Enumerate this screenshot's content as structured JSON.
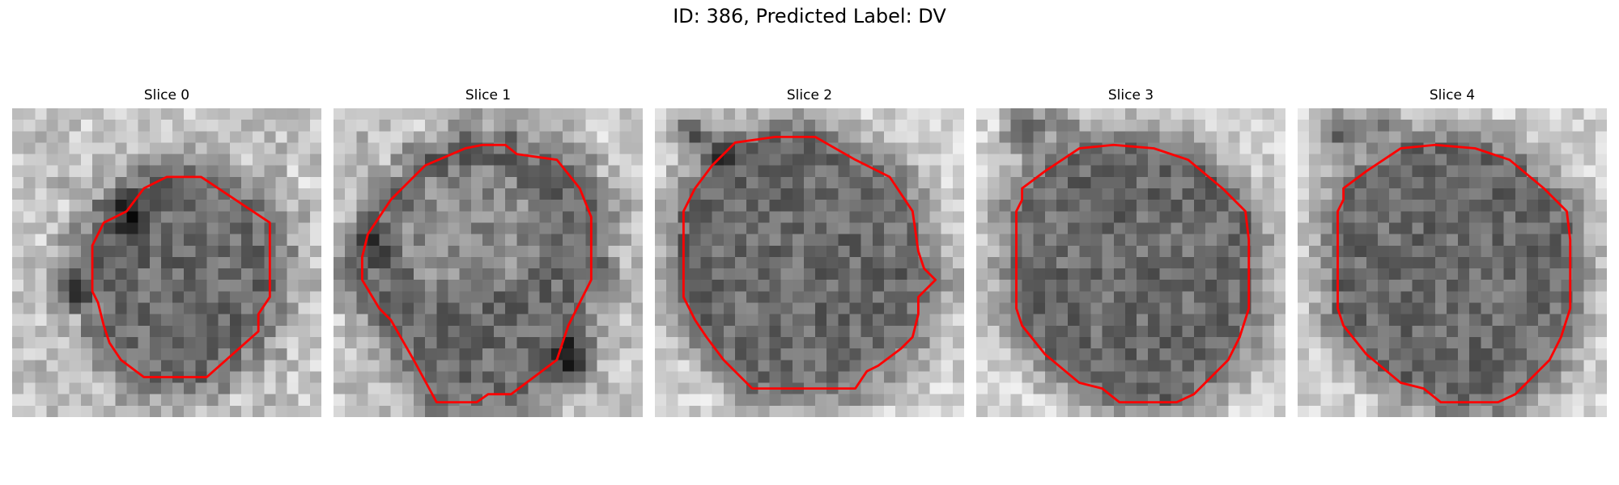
{
  "figure": {
    "title": "ID: 386, Predicted Label: DV"
  },
  "slices": [
    {
      "label": "Slice 0"
    },
    {
      "label": "Slice 1"
    },
    {
      "label": "Slice 2"
    },
    {
      "label": "Slice 3"
    },
    {
      "label": "Slice 4"
    }
  ],
  "colors": {
    "contour": "#ff0000",
    "background": "#ffffff"
  },
  "image_type": "grayscale CT slice with segmentation contour"
}
